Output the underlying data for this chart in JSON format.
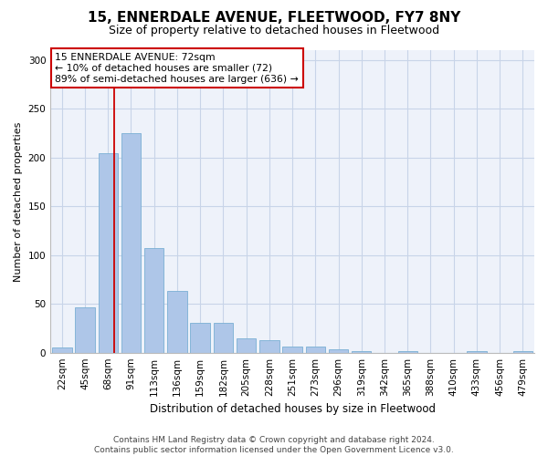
{
  "title": "15, ENNERDALE AVENUE, FLEETWOOD, FY7 8NY",
  "subtitle": "Size of property relative to detached houses in Fleetwood",
  "xlabel": "Distribution of detached houses by size in Fleetwood",
  "ylabel": "Number of detached properties",
  "categories": [
    "22sqm",
    "45sqm",
    "68sqm",
    "91sqm",
    "113sqm",
    "136sqm",
    "159sqm",
    "182sqm",
    "205sqm",
    "228sqm",
    "251sqm",
    "273sqm",
    "296sqm",
    "319sqm",
    "342sqm",
    "365sqm",
    "388sqm",
    "410sqm",
    "433sqm",
    "456sqm",
    "479sqm"
  ],
  "values": [
    5,
    46,
    204,
    225,
    107,
    63,
    31,
    31,
    15,
    13,
    6,
    6,
    3,
    2,
    0,
    2,
    0,
    0,
    2,
    0,
    2
  ],
  "bar_color": "#aec6e8",
  "bar_edge_color": "#7aafd4",
  "grid_color": "#c8d4e8",
  "background_color": "#ffffff",
  "plot_bg_color": "#eef2fa",
  "annotation_box_text": "15 ENNERDALE AVENUE: 72sqm\n← 10% of detached houses are smaller (72)\n89% of semi-detached houses are larger (636) →",
  "annotation_box_color": "white",
  "annotation_box_edge_color": "#cc0000",
  "vline_x": 2.25,
  "vline_color": "#cc0000",
  "footer_text": "Contains HM Land Registry data © Crown copyright and database right 2024.\nContains public sector information licensed under the Open Government Licence v3.0.",
  "ylim": [
    0,
    310
  ],
  "yticks": [
    0,
    50,
    100,
    150,
    200,
    250,
    300
  ],
  "title_fontsize": 11,
  "subtitle_fontsize": 9,
  "ylabel_fontsize": 8,
  "xlabel_fontsize": 8.5,
  "ann_fontsize": 7.8,
  "tick_fontsize": 7.5,
  "footer_fontsize": 6.5
}
